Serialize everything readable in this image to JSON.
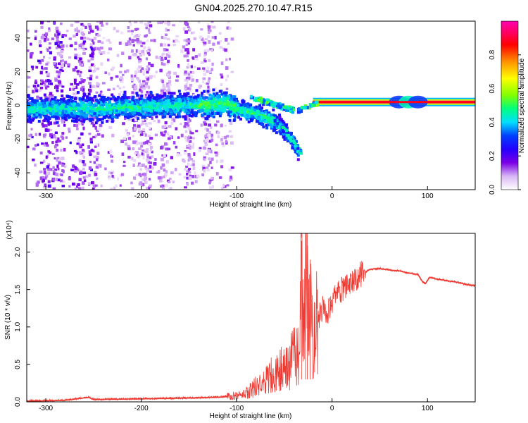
{
  "title": "GN04.2025.270.10.47.R15",
  "chart_data": [
    {
      "type": "heatmap",
      "xlabel": "Height of straight line (km)",
      "ylabel": "Frequency (Hz)",
      "xlim": [
        -320,
        150
      ],
      "ylim": [
        -50,
        50
      ],
      "xticks": [
        -300,
        -200,
        -100,
        0,
        100
      ],
      "yticks": [
        -40,
        -20,
        0,
        20,
        40
      ],
      "colorbar": {
        "label": "Normalized spectral amplitude",
        "range": [
          0,
          1
        ],
        "ticks": [
          "0.0",
          "0.2",
          "0.4",
          "0.6",
          "0.8"
        ],
        "colors": [
          "#ffffff",
          "#d8b6f5",
          "#7a00e6",
          "#2400ff",
          "#0040ff",
          "#00e0ff",
          "#00ff80",
          "#80ff00",
          "#ffff00",
          "#ff9000",
          "#ff0000",
          "#ff0060",
          "#ff00b0"
        ]
      },
      "band_center_hz": [
        [
          -320,
          -2
        ],
        [
          -250,
          -2
        ],
        [
          -200,
          -1
        ],
        [
          -150,
          0
        ],
        [
          -110,
          1
        ],
        [
          -95,
          -3
        ],
        [
          -80,
          -5
        ],
        [
          -65,
          -8
        ],
        [
          -55,
          -12
        ],
        [
          -45,
          -18
        ],
        [
          -35,
          -27
        ]
      ],
      "stable_band": {
        "x_from": -20,
        "x_to": 150,
        "frequency_hz": 2,
        "amplitude": 1.0
      }
    },
    {
      "type": "line",
      "xlabel": "Height of straight line (km)",
      "ylabel": "SNR (10 * v/v)",
      "y_multiplier": "(x10⁴)",
      "xlim": [
        -320,
        150
      ],
      "ylim": [
        0,
        2.25
      ],
      "xticks": [
        -300,
        -200,
        -100,
        0,
        100
      ],
      "yticks": [
        "0.0",
        "0.5",
        "1.0",
        "1.5",
        "2.0"
      ],
      "series": [
        {
          "color": "#ee3a32",
          "x": [
            -320,
            -280,
            -255,
            -250,
            -200,
            -150,
            -120,
            -100,
            -90,
            -80,
            -70,
            -60,
            -50,
            -45,
            -40,
            -35,
            -32,
            -30,
            -28,
            -25,
            -22,
            -20,
            -15,
            -10,
            -5,
            0,
            5,
            10,
            20,
            30,
            40,
            50,
            60,
            70,
            80,
            90,
            95,
            98,
            102,
            110,
            120,
            130,
            140,
            150
          ],
          "y": [
            0.01,
            0.02,
            0.06,
            0.03,
            0.04,
            0.05,
            0.06,
            0.08,
            0.12,
            0.2,
            0.3,
            0.4,
            0.45,
            0.5,
            0.6,
            0.7,
            1.6,
            0.8,
            2.2,
            1.0,
            1.2,
            0.9,
            1.1,
            1.25,
            1.2,
            1.3,
            1.45,
            1.5,
            1.6,
            1.7,
            1.77,
            1.78,
            1.76,
            1.75,
            1.72,
            1.7,
            1.6,
            1.58,
            1.66,
            1.64,
            1.62,
            1.6,
            1.57,
            1.55
          ]
        }
      ]
    }
  ]
}
